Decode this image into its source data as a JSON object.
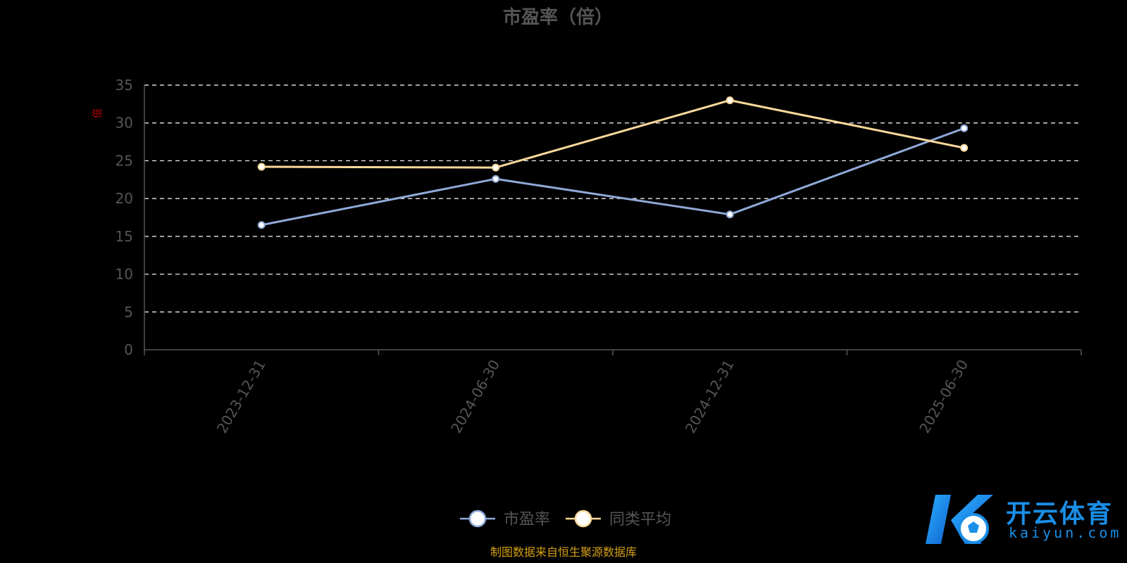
{
  "colors": {
    "background": "#000000",
    "series_pe": "#8fa9d8",
    "series_avg": "#fbd99a",
    "grid": "#ffffff",
    "axis": "#555555",
    "text": "#555555",
    "source": "#d4a017",
    "ylabel": "#cc0000",
    "watermark": "#1a8fe8"
  },
  "chart_data": {
    "type": "line",
    "title": "市盈率（倍）",
    "ylabel": "倍",
    "xlabel": "",
    "categories": [
      "2023-12-31",
      "2024-06-30",
      "2024-12-31",
      "2025-06-30"
    ],
    "ylim": [
      0,
      35
    ],
    "yticks": [
      0,
      5,
      10,
      15,
      20,
      25,
      30,
      35
    ],
    "grid": true,
    "legend_position": "bottom-center",
    "series": [
      {
        "name": "市盈率",
        "values": [
          16.5,
          22.6,
          17.9,
          29.3
        ],
        "color": "#8fa9d8"
      },
      {
        "name": "同类平均",
        "values": [
          24.2,
          24.1,
          33.0,
          26.7
        ],
        "color": "#fbd99a"
      }
    ]
  },
  "source_note": "制图数据来自恒生聚源数据库",
  "watermark": {
    "cn": "开云体育",
    "en": "kaiyun.com",
    "icon": "kaiyun-logo-icon"
  }
}
